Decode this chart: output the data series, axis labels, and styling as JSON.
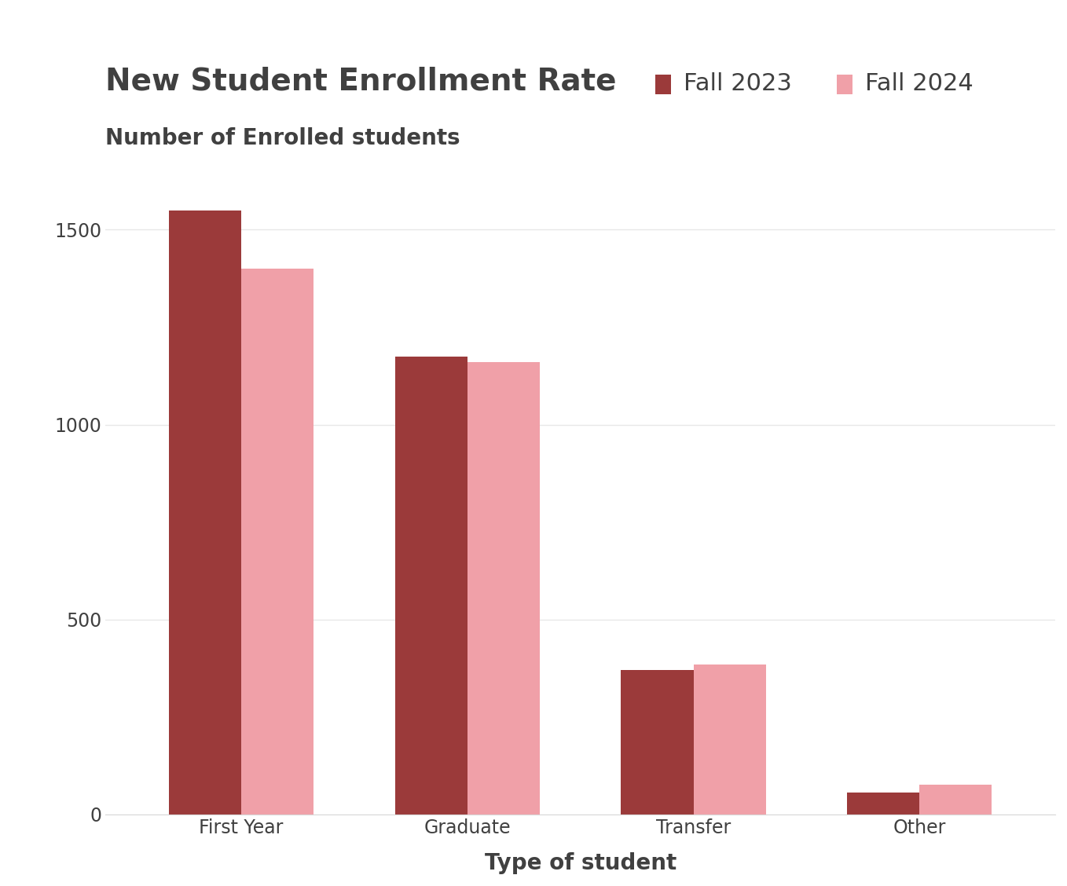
{
  "title": "New Student Enrollment Rate",
  "ylabel_above": "Number of Enrolled students",
  "xlabel": "Type of student",
  "categories": [
    "First Year",
    "Graduate",
    "Transfer",
    "Other"
  ],
  "fall2023_values": [
    1550,
    1175,
    370,
    55
  ],
  "fall2024_values": [
    1400,
    1160,
    385,
    75
  ],
  "color_2023": "#9B3A3A",
  "color_2024": "#F0A0A8",
  "legend_2023": "Fall 2023",
  "legend_2024": "Fall 2024",
  "ylim": [
    0,
    1650
  ],
  "yticks": [
    0,
    500,
    1000,
    1500
  ],
  "background_color": "#FFFFFF",
  "title_fontsize": 28,
  "legend_fontsize": 22,
  "ylabel_above_fontsize": 20,
  "axis_label_fontsize": 20,
  "tick_fontsize": 17,
  "bar_width": 0.32,
  "text_color": "#404040"
}
